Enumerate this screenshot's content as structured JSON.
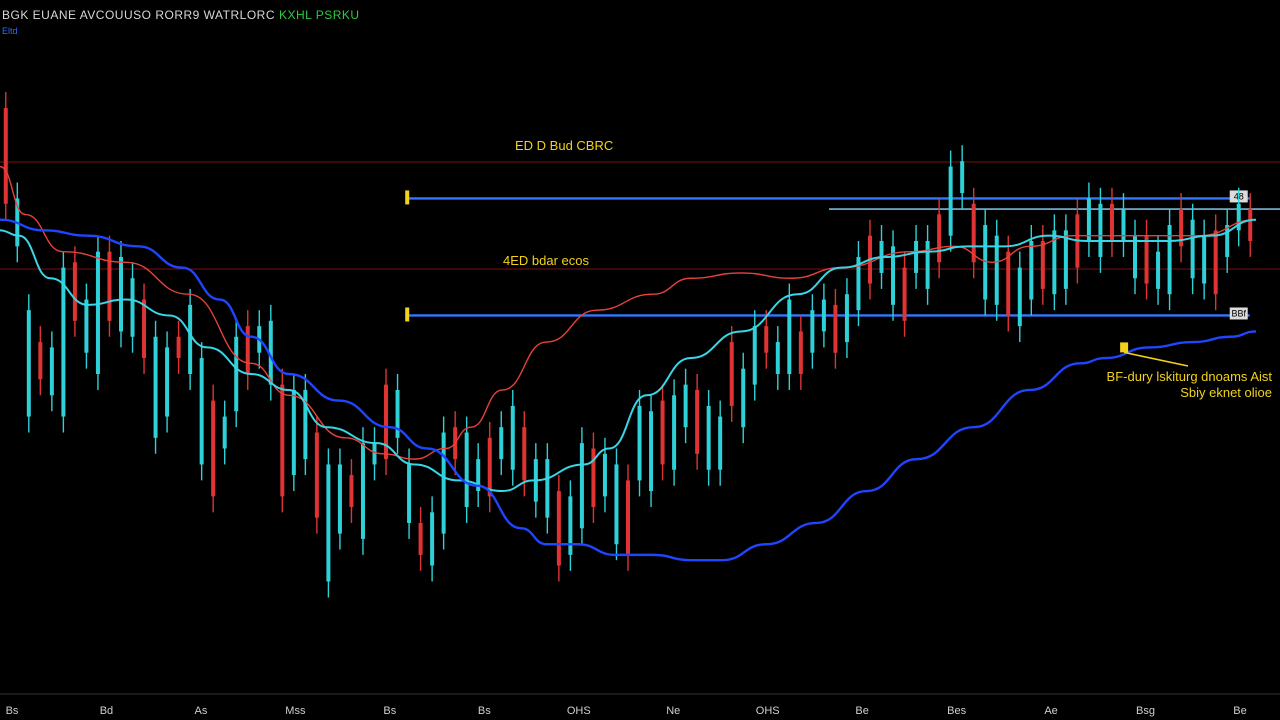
{
  "header": {
    "title": "BGK EUANE AVCOUUSO RORR9 WATRLORC",
    "symbol": "KXHL PSRKU",
    "subtitle": "Eltd",
    "symbol_color": "#2ecc40"
  },
  "colors": {
    "background": "#000000",
    "up_candle": "#2fd1d8",
    "down_candle": "#e03434",
    "ma_fast": "#e8413b",
    "ma_mid": "#38d6e6",
    "ma_slow": "#1f45ff",
    "level_line": "#2f79ff",
    "annotation": "#f2d21b"
  },
  "chart_data": {
    "type": "candlestick",
    "title": "",
    "xlabel": "",
    "ylabel": "",
    "x_ticks": [
      "Bs",
      "Bd",
      "As",
      "Mss",
      "Bs",
      "Bs",
      "OHS",
      "Ne",
      "OHS",
      "Be",
      "Bes",
      "Ae",
      "Bsg",
      "Be"
    ],
    "ylim": [
      0,
      100
    ],
    "xlim": [
      0,
      200
    ],
    "grid": false,
    "levels": [
      {
        "label": "ED D Bud CBRC",
        "value": 83,
        "tag": "48"
      },
      {
        "label": "4ED bdar ecos",
        "value": 61,
        "tag": "BBf"
      }
    ],
    "candles": [
      [
        100,
        82
      ],
      [
        83,
        74
      ],
      [
        62,
        42
      ],
      [
        56,
        49
      ],
      [
        55,
        46
      ],
      [
        70,
        42
      ],
      [
        71,
        60
      ],
      [
        64,
        54
      ],
      [
        73,
        50
      ],
      [
        73,
        60
      ],
      [
        72,
        58
      ],
      [
        68,
        57
      ],
      [
        64,
        53
      ],
      [
        57,
        38
      ],
      [
        55,
        42
      ],
      [
        57,
        53
      ],
      [
        63,
        50
      ],
      [
        53,
        33
      ],
      [
        45,
        27
      ],
      [
        42,
        36
      ],
      [
        57,
        43
      ],
      [
        59,
        50
      ],
      [
        59,
        54
      ],
      [
        60,
        48
      ],
      [
        48,
        27
      ],
      [
        47,
        31
      ],
      [
        47,
        34
      ],
      [
        39,
        23
      ],
      [
        33,
        11
      ],
      [
        33,
        20
      ],
      [
        31,
        25
      ],
      [
        37,
        19
      ],
      [
        37,
        33
      ],
      [
        48,
        34
      ],
      [
        47,
        38
      ],
      [
        33,
        22
      ],
      [
        22,
        16
      ],
      [
        24,
        14
      ],
      [
        39,
        20
      ],
      [
        40,
        34
      ],
      [
        39,
        25
      ],
      [
        34,
        28
      ],
      [
        38,
        27
      ],
      [
        40,
        34
      ],
      [
        44,
        32
      ],
      [
        40,
        30
      ],
      [
        34,
        26
      ],
      [
        34,
        23
      ],
      [
        28,
        14
      ],
      [
        27,
        16
      ],
      [
        37,
        21
      ],
      [
        36,
        25
      ],
      [
        35,
        27
      ],
      [
        33,
        18
      ],
      [
        30,
        16
      ],
      [
        44,
        30
      ],
      [
        43,
        28
      ],
      [
        45,
        33
      ],
      [
        46,
        32
      ],
      [
        48,
        40
      ],
      [
        47,
        35
      ],
      [
        44,
        32
      ],
      [
        42,
        32
      ],
      [
        56,
        44
      ],
      [
        51,
        40
      ],
      [
        59,
        48
      ],
      [
        59,
        54
      ],
      [
        56,
        50
      ],
      [
        64,
        50
      ],
      [
        58,
        50
      ],
      [
        62,
        54
      ],
      [
        64,
        58
      ],
      [
        63,
        54
      ],
      [
        65,
        56
      ],
      [
        72,
        62
      ],
      [
        76,
        67
      ],
      [
        75,
        69
      ],
      [
        74,
        63
      ],
      [
        70,
        60
      ],
      [
        75,
        69
      ],
      [
        75,
        66
      ],
      [
        80,
        71
      ],
      [
        89,
        76
      ],
      [
        90,
        84
      ],
      [
        82,
        71
      ],
      [
        78,
        64
      ],
      [
        76,
        63
      ],
      [
        73,
        61
      ],
      [
        70,
        59
      ],
      [
        75,
        64
      ],
      [
        75,
        66
      ],
      [
        77,
        65
      ],
      [
        77,
        66
      ],
      [
        80,
        70
      ],
      [
        83,
        75
      ],
      [
        82,
        72
      ],
      [
        82,
        75
      ],
      [
        81,
        75
      ],
      [
        76,
        68
      ],
      [
        76,
        67
      ],
      [
        73,
        66
      ],
      [
        78,
        65
      ],
      [
        81,
        74
      ],
      [
        79,
        68
      ],
      [
        76,
        67
      ],
      [
        77,
        65
      ],
      [
        78,
        72
      ],
      [
        82,
        77
      ],
      [
        81,
        75
      ]
    ],
    "series": [
      {
        "values": [
          [
            0,
            89
          ],
          [
            4,
            80
          ],
          [
            10,
            73
          ],
          [
            20,
            71
          ],
          [
            30,
            65
          ],
          [
            40,
            52
          ],
          [
            46,
            46
          ],
          [
            55,
            38
          ],
          [
            61,
            35
          ],
          [
            66,
            34
          ],
          [
            71,
            36
          ],
          [
            75,
            40
          ],
          [
            80,
            47
          ],
          [
            87,
            56
          ],
          [
            95,
            62
          ],
          [
            104,
            65
          ],
          [
            110,
            68
          ],
          [
            118,
            69
          ],
          [
            126,
            68
          ],
          [
            134,
            70
          ],
          [
            145,
            73
          ],
          [
            152,
            74
          ],
          [
            158,
            71
          ],
          [
            164,
            74
          ],
          [
            171,
            76
          ],
          [
            176,
            76
          ],
          [
            183,
            76
          ],
          [
            191,
            76
          ],
          [
            200,
            79
          ]
        ]
      },
      {
        "values": [
          [
            0,
            77
          ],
          [
            3,
            76
          ],
          [
            8,
            68
          ],
          [
            14,
            63
          ],
          [
            20,
            64
          ],
          [
            27,
            61
          ],
          [
            33,
            55
          ],
          [
            40,
            50
          ],
          [
            46,
            47
          ],
          [
            52,
            40
          ],
          [
            60,
            37
          ],
          [
            66,
            33
          ],
          [
            73,
            30
          ],
          [
            80,
            28
          ],
          [
            85,
            30
          ],
          [
            93,
            33
          ],
          [
            97,
            36
          ],
          [
            103,
            46
          ],
          [
            110,
            53
          ],
          [
            118,
            58
          ],
          [
            127,
            65
          ],
          [
            134,
            70
          ],
          [
            141,
            72
          ],
          [
            148,
            73
          ],
          [
            154,
            74
          ],
          [
            160,
            74
          ],
          [
            167,
            76
          ],
          [
            173,
            75
          ],
          [
            180,
            75
          ],
          [
            186,
            75
          ],
          [
            193,
            76
          ],
          [
            200,
            79
          ]
        ]
      },
      {
        "values": [
          [
            0,
            79
          ],
          [
            7,
            77
          ],
          [
            14,
            76
          ],
          [
            22,
            74
          ],
          [
            29,
            70
          ],
          [
            35,
            64
          ],
          [
            40,
            57
          ],
          [
            46,
            50
          ],
          [
            54,
            45
          ],
          [
            62,
            40
          ],
          [
            68,
            36
          ],
          [
            76,
            29
          ],
          [
            83,
            21
          ],
          [
            87,
            18
          ],
          [
            92,
            18
          ],
          [
            98,
            16
          ],
          [
            104,
            16
          ],
          [
            110,
            15
          ],
          [
            115,
            15
          ],
          [
            122,
            18
          ],
          [
            130,
            22
          ],
          [
            138,
            28
          ],
          [
            146,
            34
          ],
          [
            155,
            40
          ],
          [
            164,
            47
          ],
          [
            172,
            52
          ],
          [
            176,
            53
          ],
          [
            183,
            55
          ],
          [
            190,
            56
          ],
          [
            196,
            57
          ],
          [
            200,
            58
          ]
        ]
      }
    ],
    "annotation": {
      "lines": [
        "BF-dury lskiturg dnoams Aist",
        "Sbiy eknet olioe"
      ],
      "point": [
        179,
        55
      ]
    }
  }
}
